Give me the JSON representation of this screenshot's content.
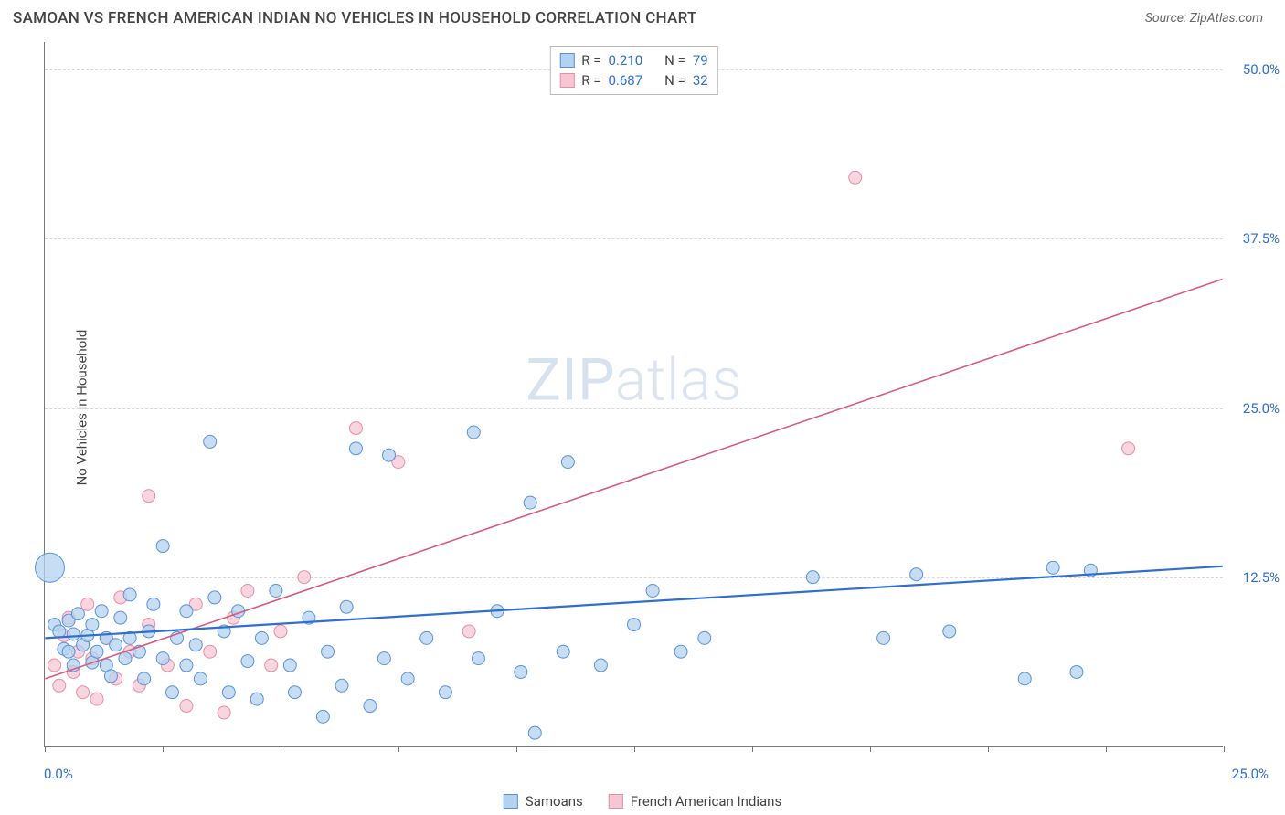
{
  "header": {
    "title": "SAMOAN VS FRENCH AMERICAN INDIAN NO VEHICLES IN HOUSEHOLD CORRELATION CHART",
    "source_label": "Source: ",
    "source_name": "ZipAtlas.com"
  },
  "chart": {
    "type": "scatter",
    "ylabel": "No Vehicles in Household",
    "watermark_bold": "ZIP",
    "watermark_thin": "atlas",
    "background_color": "#ffffff",
    "grid_color": "#d8d8d8",
    "axis_color": "#777777",
    "text_color": "#444444",
    "value_color": "#2f6fd0",
    "xlim": [
      0,
      25
    ],
    "ylim": [
      0,
      52
    ],
    "x_ticks": [
      0,
      2.5,
      5,
      7.5,
      10,
      12.5,
      15,
      17.5,
      20,
      22.5,
      25
    ],
    "x_tick_labels": {
      "0": "0.0%",
      "25": "25.0%"
    },
    "y_ticks": [
      12.5,
      25.0,
      37.5,
      50.0
    ],
    "y_tick_labels": [
      "12.5%",
      "25.0%",
      "37.5%",
      "50.0%"
    ],
    "legend_top": [
      {
        "swatch_fill": "#b3d1f0",
        "swatch_border": "#5a93d4",
        "r_label": "R =",
        "r_value": "0.210",
        "n_label": "N =",
        "n_value": "79"
      },
      {
        "swatch_fill": "#f6c6d3",
        "swatch_border": "#e38fa7",
        "r_label": "R =",
        "r_value": "0.687",
        "n_label": "N =",
        "n_value": "32"
      }
    ],
    "legend_bottom": [
      {
        "swatch_fill": "#b3d1f0",
        "swatch_border": "#5a93d4",
        "label": "Samoans"
      },
      {
        "swatch_fill": "#f6c6d3",
        "swatch_border": "#e38fa7",
        "label": "French American Indians"
      }
    ],
    "series": {
      "samoans": {
        "marker_fill": "#b3d1f0",
        "marker_stroke": "#5a93d4",
        "marker_opacity": 0.75,
        "base_radius": 7,
        "trend_color": "#2f6fd0",
        "trend_width": 2.2,
        "trend": {
          "x1": 0,
          "y1": 8.0,
          "x2": 25,
          "y2": 13.3
        },
        "points": [
          {
            "x": 0.1,
            "y": 13.2,
            "r": 16
          },
          {
            "x": 0.2,
            "y": 9.0
          },
          {
            "x": 0.3,
            "y": 8.5
          },
          {
            "x": 0.4,
            "y": 7.2
          },
          {
            "x": 0.5,
            "y": 9.3
          },
          {
            "x": 0.5,
            "y": 7.0
          },
          {
            "x": 0.6,
            "y": 8.3
          },
          {
            "x": 0.6,
            "y": 6.0
          },
          {
            "x": 0.7,
            "y": 9.8
          },
          {
            "x": 0.8,
            "y": 7.5
          },
          {
            "x": 0.9,
            "y": 8.2
          },
          {
            "x": 1.0,
            "y": 6.2
          },
          {
            "x": 1.0,
            "y": 9.0
          },
          {
            "x": 1.1,
            "y": 7.0
          },
          {
            "x": 1.2,
            "y": 10.0
          },
          {
            "x": 1.3,
            "y": 6.0
          },
          {
            "x": 1.3,
            "y": 8.0
          },
          {
            "x": 1.4,
            "y": 5.2
          },
          {
            "x": 1.5,
            "y": 7.5
          },
          {
            "x": 1.6,
            "y": 9.5
          },
          {
            "x": 1.7,
            "y": 6.5
          },
          {
            "x": 1.8,
            "y": 8.0
          },
          {
            "x": 1.8,
            "y": 11.2
          },
          {
            "x": 2.0,
            "y": 7.0
          },
          {
            "x": 2.1,
            "y": 5.0
          },
          {
            "x": 2.2,
            "y": 8.5
          },
          {
            "x": 2.3,
            "y": 10.5
          },
          {
            "x": 2.5,
            "y": 6.5
          },
          {
            "x": 2.5,
            "y": 14.8
          },
          {
            "x": 2.7,
            "y": 4.0
          },
          {
            "x": 2.8,
            "y": 8.0
          },
          {
            "x": 3.0,
            "y": 6.0
          },
          {
            "x": 3.0,
            "y": 10.0
          },
          {
            "x": 3.2,
            "y": 7.5
          },
          {
            "x": 3.3,
            "y": 5.0
          },
          {
            "x": 3.5,
            "y": 22.5
          },
          {
            "x": 3.6,
            "y": 11.0
          },
          {
            "x": 3.8,
            "y": 8.5
          },
          {
            "x": 3.9,
            "y": 4.0
          },
          {
            "x": 4.1,
            "y": 10.0
          },
          {
            "x": 4.3,
            "y": 6.3
          },
          {
            "x": 4.5,
            "y": 3.5
          },
          {
            "x": 4.6,
            "y": 8.0
          },
          {
            "x": 4.9,
            "y": 11.5
          },
          {
            "x": 5.2,
            "y": 6.0
          },
          {
            "x": 5.3,
            "y": 4.0
          },
          {
            "x": 5.6,
            "y": 9.5
          },
          {
            "x": 5.9,
            "y": 2.2
          },
          {
            "x": 6.0,
            "y": 7.0
          },
          {
            "x": 6.3,
            "y": 4.5
          },
          {
            "x": 6.4,
            "y": 10.3
          },
          {
            "x": 6.6,
            "y": 22.0
          },
          {
            "x": 6.9,
            "y": 3.0
          },
          {
            "x": 7.2,
            "y": 6.5
          },
          {
            "x": 7.3,
            "y": 21.5
          },
          {
            "x": 7.7,
            "y": 5.0
          },
          {
            "x": 8.1,
            "y": 8.0
          },
          {
            "x": 8.5,
            "y": 4.0
          },
          {
            "x": 9.1,
            "y": 23.2
          },
          {
            "x": 9.2,
            "y": 6.5
          },
          {
            "x": 9.6,
            "y": 10.0
          },
          {
            "x": 10.1,
            "y": 5.5
          },
          {
            "x": 10.3,
            "y": 18.0
          },
          {
            "x": 10.4,
            "y": 1.0
          },
          {
            "x": 11.0,
            "y": 7.0
          },
          {
            "x": 11.1,
            "y": 21.0
          },
          {
            "x": 11.8,
            "y": 6.0
          },
          {
            "x": 12.5,
            "y": 9.0
          },
          {
            "x": 12.9,
            "y": 11.5
          },
          {
            "x": 13.5,
            "y": 7.0
          },
          {
            "x": 14.0,
            "y": 8.0
          },
          {
            "x": 16.3,
            "y": 12.5
          },
          {
            "x": 17.8,
            "y": 8.0
          },
          {
            "x": 18.5,
            "y": 12.7
          },
          {
            "x": 19.2,
            "y": 8.5
          },
          {
            "x": 20.8,
            "y": 5.0
          },
          {
            "x": 21.4,
            "y": 13.2
          },
          {
            "x": 21.9,
            "y": 5.5
          },
          {
            "x": 22.2,
            "y": 13.0
          }
        ]
      },
      "french_ai": {
        "marker_fill": "#f6c6d3",
        "marker_stroke": "#e38fa7",
        "marker_opacity": 0.72,
        "base_radius": 7,
        "trend_color": "#d85a7e",
        "trend_width": 1.6,
        "trend": {
          "x1": 0,
          "y1": 5.0,
          "x2": 25,
          "y2": 34.5
        },
        "points": [
          {
            "x": 0.2,
            "y": 6.0
          },
          {
            "x": 0.3,
            "y": 4.5
          },
          {
            "x": 0.4,
            "y": 8.2
          },
          {
            "x": 0.5,
            "y": 9.5
          },
          {
            "x": 0.6,
            "y": 5.5
          },
          {
            "x": 0.7,
            "y": 7.0
          },
          {
            "x": 0.8,
            "y": 4.0
          },
          {
            "x": 0.9,
            "y": 10.5
          },
          {
            "x": 1.0,
            "y": 6.5
          },
          {
            "x": 1.1,
            "y": 3.5
          },
          {
            "x": 1.3,
            "y": 8.0
          },
          {
            "x": 1.5,
            "y": 5.0
          },
          {
            "x": 1.6,
            "y": 11.0
          },
          {
            "x": 1.8,
            "y": 7.0
          },
          {
            "x": 2.0,
            "y": 4.5
          },
          {
            "x": 2.2,
            "y": 9.0
          },
          {
            "x": 2.6,
            "y": 6.0
          },
          {
            "x": 2.2,
            "y": 18.5
          },
          {
            "x": 3.0,
            "y": 3.0
          },
          {
            "x": 3.2,
            "y": 10.5
          },
          {
            "x": 3.5,
            "y": 7.0
          },
          {
            "x": 3.8,
            "y": 2.5
          },
          {
            "x": 4.0,
            "y": 9.5
          },
          {
            "x": 4.3,
            "y": 11.5
          },
          {
            "x": 4.8,
            "y": 6.0
          },
          {
            "x": 5.0,
            "y": 8.5
          },
          {
            "x": 5.5,
            "y": 12.5
          },
          {
            "x": 6.6,
            "y": 23.5
          },
          {
            "x": 7.5,
            "y": 21.0
          },
          {
            "x": 9.0,
            "y": 8.5
          },
          {
            "x": 17.2,
            "y": 42.0
          },
          {
            "x": 23.0,
            "y": 22.0
          }
        ]
      }
    }
  }
}
